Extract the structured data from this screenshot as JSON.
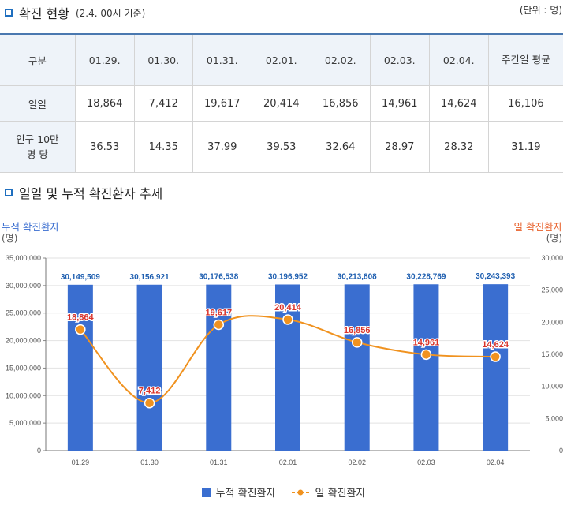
{
  "section1": {
    "title": "확진 현황",
    "subtitle": "(2.4. 00시 기준)",
    "unit": "(단위 : 명)"
  },
  "table": {
    "headers": [
      "구분",
      "01.29.",
      "01.30.",
      "01.31.",
      "02.01.",
      "02.02.",
      "02.03.",
      "02.04.",
      "주간일 평균"
    ],
    "rows": [
      {
        "label": "일일",
        "values": [
          "18,864",
          "7,412",
          "19,617",
          "20,414",
          "16,856",
          "14,961",
          "14,624",
          "16,106"
        ]
      },
      {
        "label": "인구 10만 명 당",
        "values": [
          "36.53",
          "14.35",
          "37.99",
          "39.53",
          "32.64",
          "28.97",
          "28.32",
          "31.19"
        ]
      }
    ]
  },
  "section2": {
    "title": "일일 및 누적 확진환자 추세"
  },
  "colors": {
    "bar": "#3a6ed0",
    "line": "#f0921f",
    "daily_label": "#d9332a",
    "cum_label": "#1f5fb0",
    "accent": "#1f6fbf"
  },
  "chart_data": {
    "type": "bar",
    "categories": [
      "01.29",
      "01.30",
      "01.31",
      "02.01",
      "02.02",
      "02.03",
      "02.04"
    ],
    "series": [
      {
        "name": "누적 확진환자",
        "type": "bar",
        "axis": "left",
        "values": [
          30149509,
          30156921,
          30176538,
          30196952,
          30213808,
          30228769,
          30243393
        ],
        "labels": [
          "30,149,509",
          "30,156,921",
          "30,176,538",
          "30,196,952",
          "30,213,808",
          "30,228,769",
          "30,243,393"
        ]
      },
      {
        "name": "일 확진환자",
        "type": "line",
        "axis": "right",
        "values": [
          18864,
          7412,
          19617,
          20414,
          16856,
          14961,
          14624
        ],
        "labels": [
          "18,864",
          "7,412",
          "19,617",
          "20,414",
          "16,856",
          "14,961",
          "14,624"
        ]
      }
    ],
    "ylabel_left": "누적 확진환자",
    "yunit_left": "(명)",
    "ylabel_right": "일 확진환자",
    "yunit_right": "(명)",
    "ylim_left": [
      0,
      35000000
    ],
    "ylim_right": [
      0,
      30000
    ],
    "yticks_left": [
      "0",
      "5,000,000",
      "10,000,000",
      "15,000,000",
      "20,000,000",
      "25,000,000",
      "30,000,000",
      "35,000,000"
    ],
    "yticks_right": [
      "0",
      "5,000",
      "10,000",
      "15,000",
      "20,000",
      "25,000",
      "30,000"
    ],
    "grid": true,
    "legend": "bottom-center"
  }
}
